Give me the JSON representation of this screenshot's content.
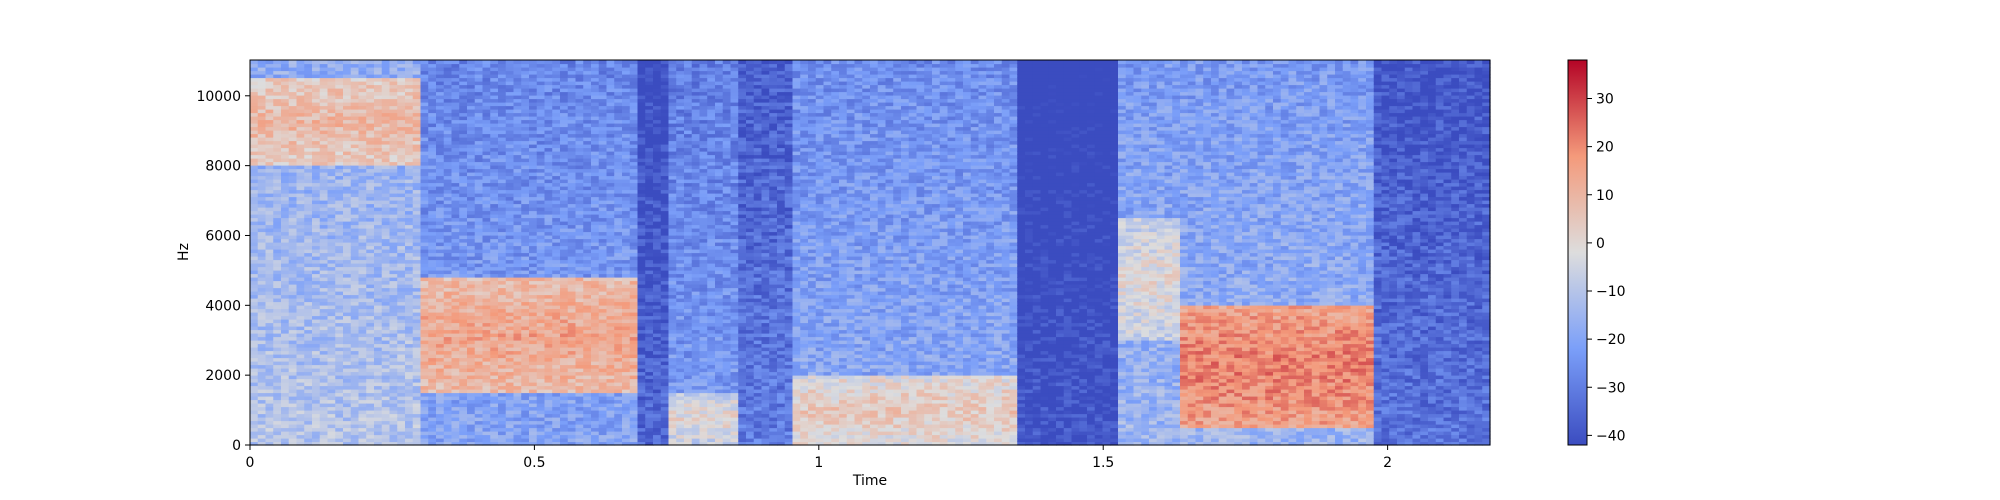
{
  "chart_data": {
    "type": "heatmap",
    "title": "",
    "xlabel": "Time",
    "ylabel": "Hz",
    "xlim": [
      0,
      2.18
    ],
    "ylim": [
      0,
      11025
    ],
    "x_ticks": [
      0,
      0.5,
      1,
      1.5,
      2
    ],
    "x_tick_labels": [
      "0",
      "0.5",
      "1",
      "1.5",
      "2"
    ],
    "y_ticks": [
      0,
      2000,
      4000,
      6000,
      8000,
      10000
    ],
    "y_tick_labels": [
      "0",
      "2000",
      "4000",
      "6000",
      "8000",
      "10000"
    ],
    "colormap": "coolwarm",
    "colorbar": {
      "range": [
        -42,
        38
      ],
      "ticks": [
        -40,
        -30,
        -20,
        -10,
        0,
        10,
        20,
        30
      ],
      "tick_labels": [
        "−40",
        "−30",
        "−20",
        "−10",
        "0",
        "10",
        "20",
        "30"
      ]
    },
    "colors": {
      "low": "#3b4cc0",
      "mid": "#dddddd",
      "high": "#b40426"
    },
    "grid": false,
    "time_segments": [
      {
        "t": [
          0.0,
          0.3
        ],
        "level_db": -10,
        "hot_band_hz": [
          8000,
          10500
        ],
        "hot_db": 10
      },
      {
        "t": [
          0.3,
          0.68
        ],
        "level_db": -20,
        "hot_band_hz": [
          1500,
          4800
        ],
        "hot_db": 15
      },
      {
        "t": [
          0.68,
          0.74
        ],
        "level_db": -35,
        "hot_band_hz": [
          0,
          0
        ],
        "hot_db": -35
      },
      {
        "t": [
          0.74,
          0.86
        ],
        "level_db": -22,
        "hot_band_hz": [
          0,
          1500
        ],
        "hot_db": 0
      },
      {
        "t": [
          0.86,
          0.95
        ],
        "level_db": -30,
        "hot_band_hz": [
          0,
          0
        ],
        "hot_db": -30
      },
      {
        "t": [
          0.95,
          1.35
        ],
        "level_db": -18,
        "hot_band_hz": [
          0,
          2000
        ],
        "hot_db": 5
      },
      {
        "t": [
          1.35,
          1.52
        ],
        "level_db": -40,
        "hot_band_hz": [
          0,
          0
        ],
        "hot_db": -40
      },
      {
        "t": [
          1.52,
          1.64
        ],
        "level_db": -15,
        "hot_band_hz": [
          3000,
          6500
        ],
        "hot_db": 0
      },
      {
        "t": [
          1.64,
          1.98
        ],
        "level_db": -15,
        "hot_band_hz": [
          500,
          4000
        ],
        "hot_db": 22
      },
      {
        "t": [
          1.98,
          2.18
        ],
        "level_db": -32,
        "hot_band_hz": [
          0,
          0
        ],
        "hot_db": -32
      }
    ]
  }
}
